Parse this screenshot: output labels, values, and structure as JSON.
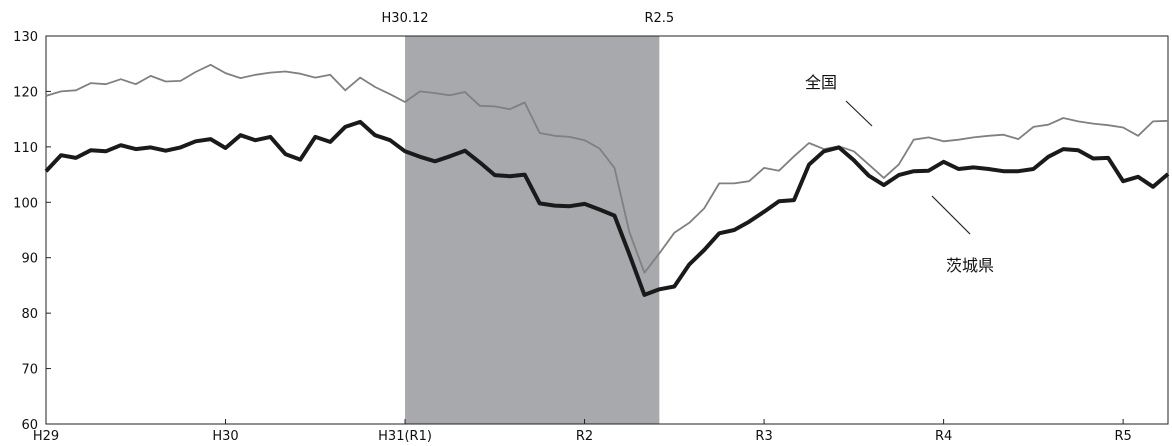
{
  "chart_data": {
    "type": "line",
    "ylim": [
      60,
      130
    ],
    "yticks": [
      60,
      70,
      80,
      90,
      100,
      110,
      120,
      130
    ],
    "xlim": [
      0,
      75
    ],
    "xticks": [
      {
        "x": 0,
        "label": "H29"
      },
      {
        "x": 12,
        "label": "H30"
      },
      {
        "x": 24,
        "label": "H31(R1)"
      },
      {
        "x": 36,
        "label": "R2"
      },
      {
        "x": 48,
        "label": "R3"
      },
      {
        "x": 60,
        "label": "R4"
      },
      {
        "x": 72,
        "label": "R5"
      }
    ],
    "shaded_period": {
      "start": 24,
      "end": 41,
      "start_label": "H30.12",
      "end_label": "R2.5",
      "color": "#a7a9ac"
    },
    "series": [
      {
        "name": "全国",
        "color": "#808080",
        "weight": "thin",
        "values": [
          119.2,
          120.0,
          120.2,
          121.5,
          121.3,
          122.2,
          121.3,
          122.8,
          121.8,
          121.9,
          123.5,
          124.8,
          123.3,
          122.4,
          123.0,
          123.4,
          123.6,
          123.2,
          122.5,
          123.0,
          120.2,
          122.5,
          120.8,
          119.5,
          118.1,
          120.0,
          119.7,
          119.3,
          119.9,
          117.4,
          117.3,
          116.8,
          118.0,
          112.5,
          112.0,
          111.8,
          111.2,
          109.7,
          106.2,
          94.6,
          87.3,
          90.8,
          94.5,
          96.3,
          98.9,
          103.4,
          103.4,
          103.8,
          106.2,
          105.7,
          108.3,
          110.7,
          109.6,
          110.1,
          109.2,
          106.8,
          104.4,
          106.8,
          111.3,
          111.7,
          111.0,
          111.3,
          111.7,
          112.0,
          112.2,
          111.4,
          113.6,
          114.0,
          115.2,
          114.6,
          114.2,
          113.9,
          113.5,
          112.0,
          114.6,
          114.7
        ]
      },
      {
        "name": "茨城県",
        "color": "#1a1a1a",
        "weight": "thick",
        "values": [
          105.6,
          108.5,
          108.0,
          109.4,
          109.2,
          110.3,
          109.6,
          109.9,
          109.3,
          109.9,
          111.0,
          111.4,
          109.8,
          112.1,
          111.2,
          111.8,
          108.7,
          107.7,
          111.8,
          110.9,
          113.6,
          114.5,
          112.1,
          111.2,
          109.2,
          108.2,
          107.4,
          108.3,
          109.3,
          107.2,
          104.9,
          104.7,
          105.0,
          99.8,
          99.4,
          99.3,
          99.7,
          98.7,
          97.6,
          90.6,
          83.3,
          84.3,
          84.8,
          88.8,
          91.4,
          94.4,
          95.0,
          96.5,
          98.3,
          100.2,
          100.4,
          106.8,
          109.2,
          109.9,
          107.6,
          104.8,
          103.1,
          104.9,
          105.6,
          105.7,
          107.3,
          106.0,
          106.3,
          106.0,
          105.6,
          105.6,
          106.0,
          108.2,
          109.6,
          109.4,
          107.9,
          108.0,
          103.8,
          104.6,
          102.8,
          105.1
        ]
      }
    ],
    "series_labels": [
      {
        "text": "全国",
        "x": 45,
        "y": 122
      },
      {
        "text": "茨城県",
        "x": 56,
        "y": 88.5
      }
    ]
  }
}
